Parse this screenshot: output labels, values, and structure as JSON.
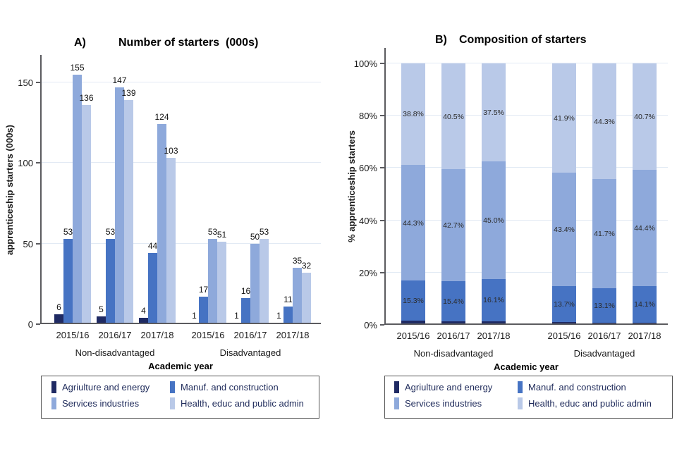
{
  "series_colors": [
    "#1f2a63",
    "#4673c3",
    "#8ea9db",
    "#b9c9e8"
  ],
  "legend": {
    "items": [
      {
        "label": "Agriulture and energy",
        "color": "#1f2a63"
      },
      {
        "label": "Manuf. and construction",
        "color": "#4673c3"
      },
      {
        "label": "Services industries",
        "color": "#8ea9db"
      },
      {
        "label": "Health, educ and public admin",
        "color": "#b9c9e8"
      }
    ]
  },
  "chart_data": [
    {
      "type": "bar",
      "panel_letter": "A)",
      "title": "Number of starters  (000s)",
      "ylabel": "apprenticeship starters (000s)",
      "xlabel": "Academic year",
      "ylim": [
        0,
        167
      ],
      "yticks": [
        0,
        50,
        100,
        150
      ],
      "ytick_suffix": "",
      "grid": true,
      "legend_position": "bottom",
      "categories": [
        "2015/16",
        "2016/17",
        "2017/18",
        "2015/16",
        "2016/17",
        "2017/18"
      ],
      "cluster_labels": [
        "Non-disadvantaged",
        "Disadvantaged"
      ],
      "series": [
        {
          "name": "Agriulture and energy",
          "values": [
            6,
            5,
            4,
            1,
            1,
            1
          ],
          "show_labels": true
        },
        {
          "name": "Manuf. and construction",
          "values": [
            53,
            53,
            44,
            17,
            16,
            11
          ],
          "show_labels": true
        },
        {
          "name": "Services industries",
          "values": [
            155,
            147,
            124,
            53,
            50,
            35
          ],
          "show_labels": true
        },
        {
          "name": "Health, educ and public admin",
          "values": [
            136,
            139,
            103,
            51,
            53,
            32
          ],
          "show_labels": true
        }
      ]
    },
    {
      "type": "stacked-bar",
      "panel_letter": "B)",
      "title": "Composition of starters",
      "ylabel": "% apprenticeship starters",
      "xlabel": "Academic year",
      "ylim": [
        0,
        100
      ],
      "yticks": [
        0,
        20,
        40,
        60,
        80,
        100
      ],
      "ytick_suffix": "%",
      "grid": true,
      "legend_position": "bottom",
      "categories": [
        "2015/16",
        "2016/17",
        "2017/18",
        "2015/16",
        "2016/17",
        "2017/18"
      ],
      "cluster_labels": [
        "Non-disadvantaged",
        "Disadvantaged"
      ],
      "series": [
        {
          "name": "Agriulture and energy",
          "values": [
            1.6,
            1.4,
            1.4,
            1.0,
            0.9,
            0.8
          ],
          "show_labels": false
        },
        {
          "name": "Manuf. and construction",
          "values": [
            15.3,
            15.4,
            16.1,
            13.7,
            13.1,
            14.1
          ],
          "show_labels": true
        },
        {
          "name": "Services industries",
          "values": [
            44.3,
            42.7,
            45.0,
            43.4,
            41.7,
            44.4
          ],
          "show_labels": true
        },
        {
          "name": "Health, educ and public admin",
          "values": [
            38.8,
            40.5,
            37.5,
            41.9,
            44.3,
            40.7
          ],
          "show_labels": true
        }
      ]
    }
  ]
}
